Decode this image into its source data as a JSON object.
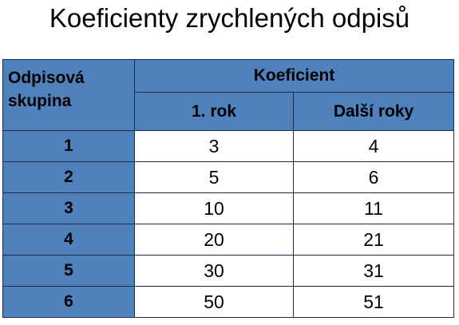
{
  "title": "Koeficienty zrychlených odpisů",
  "table": {
    "header": {
      "group_label": "Odpisová skupina",
      "group": "Koeficient",
      "columns": [
        "1. rok",
        "Další roky"
      ]
    },
    "rows": [
      [
        1,
        3,
        4
      ],
      [
        2,
        5,
        6
      ],
      [
        3,
        10,
        11
      ],
      [
        4,
        20,
        21
      ],
      [
        5,
        30,
        31
      ],
      [
        6,
        50,
        51
      ]
    ]
  }
}
